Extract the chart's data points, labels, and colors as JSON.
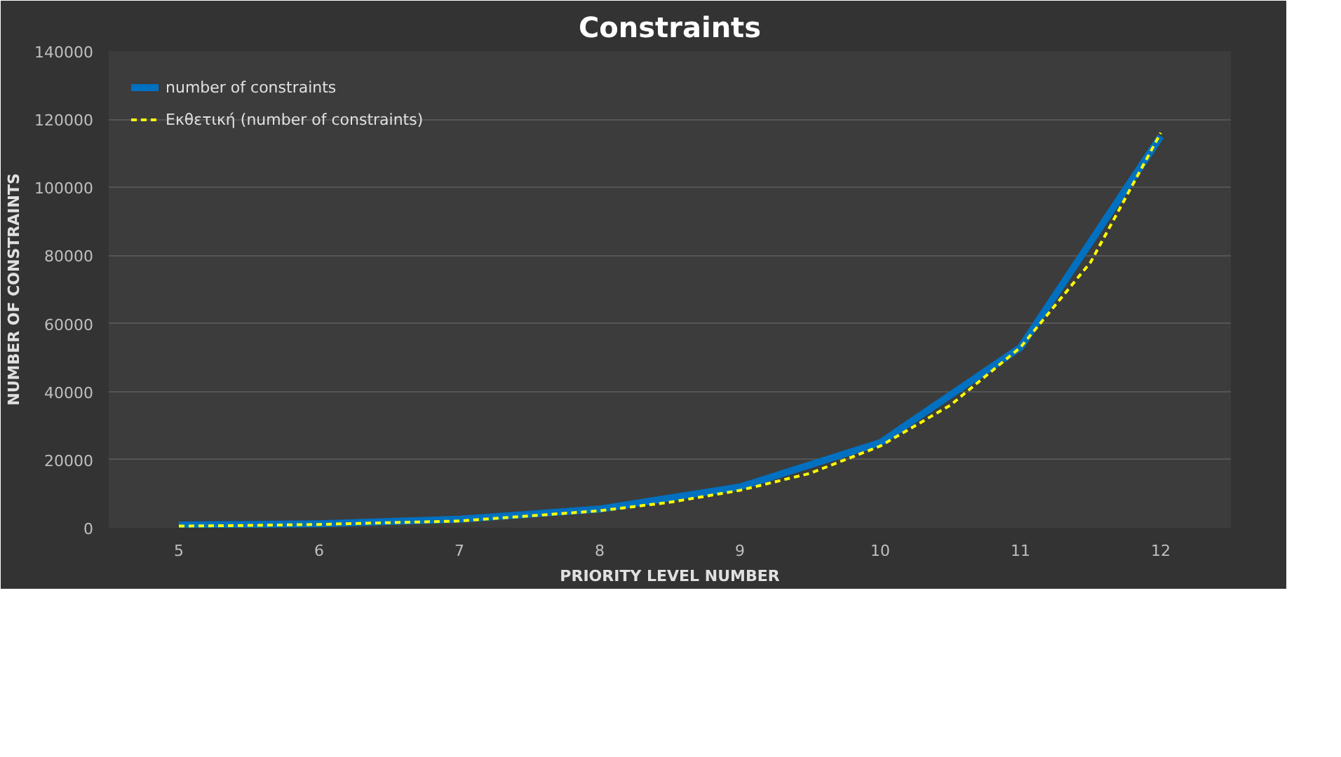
{
  "chart_data": {
    "type": "line",
    "title": "Constraints",
    "xlabel": "PRIORITY LEVEL NUMBER",
    "ylabel": "NUMBER OF CONSTRAINTS",
    "x": [
      5,
      6,
      7,
      8,
      9,
      10,
      11,
      12
    ],
    "series": [
      {
        "name": "number of constraints",
        "color": "#0070c0",
        "values": [
          800,
          1200,
          2500,
          5500,
          12000,
          25000,
          53000,
          115000
        ],
        "line_style": "solid"
      },
      {
        "name": "Εκθετική (number of constraints)",
        "color": "#ffff00",
        "type": "line",
        "line_style": "dashed",
        "x": [
          5,
          5.5,
          6,
          6.5,
          7,
          7.5,
          8,
          8.5,
          9,
          9.5,
          10,
          10.5,
          11,
          11.5,
          12
        ],
        "values": [
          500,
          700,
          1000,
          1500,
          2000,
          3500,
          5000,
          7500,
          11000,
          16000,
          24000,
          36000,
          53000,
          78000,
          116000
        ]
      }
    ],
    "xlim": [
      4.5,
      12.5
    ],
    "xticks": [
      5,
      6,
      7,
      8,
      9,
      10,
      11,
      12
    ],
    "ylim": [
      0,
      140000
    ],
    "yticks": [
      0,
      20000,
      40000,
      60000,
      80000,
      100000,
      120000,
      140000
    ],
    "grid": "y",
    "legend": "top left"
  }
}
